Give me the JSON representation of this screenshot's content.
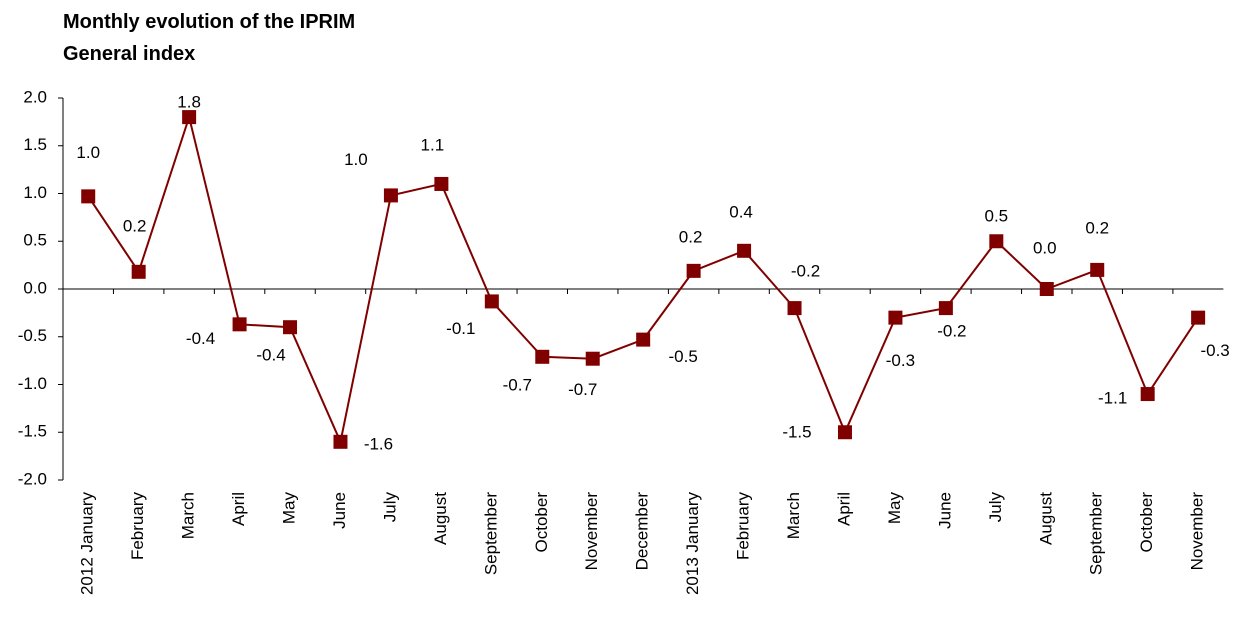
{
  "chart_data": {
    "type": "line",
    "title": "Monthly evolution of the IPRIM General index",
    "categories": [
      "2012 January",
      "February",
      "March",
      "April",
      "May",
      "June",
      "July",
      "August",
      "September",
      "October",
      "November",
      "December",
      "2013 January",
      "February",
      "March",
      "April",
      "May",
      "June",
      "July",
      "August",
      "September",
      "October",
      "November"
    ],
    "series": [
      {
        "name": "IPRIM General index",
        "color": "#800000",
        "values": [
          0.97,
          0.18,
          1.8,
          -0.37,
          -0.4,
          -1.6,
          0.98,
          1.1,
          -0.13,
          -0.71,
          -0.73,
          -0.53,
          0.19,
          0.4,
          -0.2,
          -1.5,
          -0.3,
          -0.2,
          0.5,
          0.0,
          0.2,
          -1.1,
          -0.3
        ],
        "value_labels": [
          "1.0",
          "0.2",
          "1.8",
          "-0.4",
          "-0.4",
          "-1.6",
          "1.0",
          "1.1",
          "-0.1",
          "-0.7",
          "-0.7",
          "-0.5",
          "0.2",
          "0.4",
          "-0.2",
          "-1.5",
          "-0.3",
          "-0.2",
          "0.5",
          "0.0",
          "0.2",
          "-1.1",
          "-0.3"
        ]
      }
    ],
    "ylim": [
      -2.0,
      2.0
    ],
    "yticks": [
      {
        "value": -2.0,
        "label": "-2.0"
      },
      {
        "value": -1.5,
        "label": "-1.5"
      },
      {
        "value": -1.0,
        "label": "-1.0"
      },
      {
        "value": -0.5,
        "label": "-0.5"
      },
      {
        "value": 0.0,
        "label": "0.0"
      },
      {
        "value": 0.5,
        "label": "0.5"
      },
      {
        "value": 1.0,
        "label": "1.0"
      },
      {
        "value": 1.5,
        "label": "1.5"
      },
      {
        "value": 2.0,
        "label": "2.0"
      }
    ],
    "grid": false
  }
}
